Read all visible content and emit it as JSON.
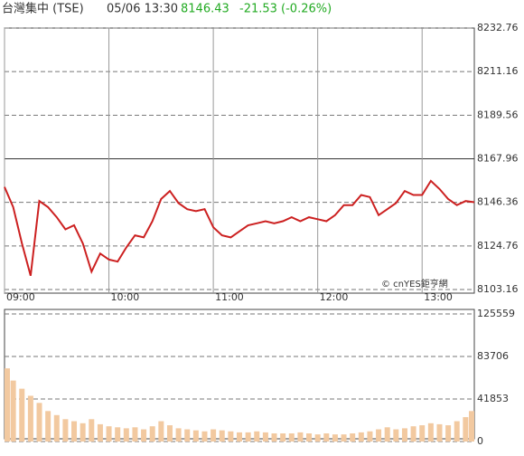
{
  "header": {
    "title": "台灣集中 (TSE)",
    "time": "05/06 13:30",
    "price": 8146.43,
    "change": "-21.53 (-0.26%)"
  },
  "chart_data": [
    {
      "type": "line",
      "reference": 8167.96,
      "x": [
        "09:00",
        "09:05",
        "09:10",
        "09:15",
        "09:20",
        "09:25",
        "09:30",
        "09:35",
        "09:40",
        "09:45",
        "09:50",
        "09:55",
        "10:00",
        "10:05",
        "10:10",
        "10:15",
        "10:20",
        "10:25",
        "10:30",
        "10:35",
        "10:40",
        "10:45",
        "10:50",
        "10:55",
        "11:00",
        "11:05",
        "11:10",
        "11:15",
        "11:20",
        "11:25",
        "11:30",
        "11:35",
        "11:40",
        "11:45",
        "11:50",
        "11:55",
        "12:00",
        "12:05",
        "12:10",
        "12:15",
        "12:20",
        "12:25",
        "12:30",
        "12:35",
        "12:40",
        "12:45",
        "12:50",
        "12:55",
        "13:00",
        "13:05",
        "13:10",
        "13:15",
        "13:20",
        "13:25",
        "13:30"
      ],
      "series": [
        {
          "name": "TSE",
          "color": "#cc2020",
          "values": [
            8154,
            8144,
            8126,
            8110,
            8147,
            8144,
            8139,
            8133,
            8135,
            8126,
            8112,
            8121,
            8118,
            8117,
            8124,
            8130,
            8129,
            8137,
            8148,
            8152,
            8146,
            8143,
            8142,
            8143,
            8134,
            8130,
            8129,
            8132,
            8135,
            8136,
            8137,
            8136,
            8137,
            8139,
            8137,
            8139,
            8138,
            8137,
            8140,
            8145,
            8145,
            8150,
            8149,
            8140,
            8143,
            8146,
            8152,
            8150,
            8150,
            8157,
            8153,
            8148,
            8145,
            8147,
            8146.43
          ]
        }
      ],
      "xlim": [
        "09:00",
        "13:30"
      ],
      "xticks": [
        "09:00",
        "10:00",
        "11:00",
        "12:00",
        "13:00"
      ],
      "ylim": [
        8103.16,
        8232.76
      ],
      "yticks": [
        8232.76,
        8211.16,
        8189.56,
        8167.96,
        8146.36,
        8124.76,
        8103.16
      ],
      "grid": true,
      "watermark": "© cnYES鉅亨網"
    },
    {
      "type": "bar",
      "x": [
        "09:00",
        "09:05",
        "09:10",
        "09:15",
        "09:20",
        "09:25",
        "09:30",
        "09:35",
        "09:40",
        "09:45",
        "09:50",
        "09:55",
        "10:00",
        "10:05",
        "10:10",
        "10:15",
        "10:20",
        "10:25",
        "10:30",
        "10:35",
        "10:40",
        "10:45",
        "10:50",
        "10:55",
        "11:00",
        "11:05",
        "11:10",
        "11:15",
        "11:20",
        "11:25",
        "11:30",
        "11:35",
        "11:40",
        "11:45",
        "11:50",
        "11:55",
        "12:00",
        "12:05",
        "12:10",
        "12:15",
        "12:20",
        "12:25",
        "12:30",
        "12:35",
        "12:40",
        "12:45",
        "12:50",
        "12:55",
        "13:00",
        "13:05",
        "13:10",
        "13:15",
        "13:20",
        "13:25",
        "13:30"
      ],
      "values": [
        72000,
        60000,
        52000,
        45000,
        38000,
        30000,
        26000,
        22000,
        20000,
        18000,
        22000,
        17000,
        15000,
        14000,
        13000,
        14000,
        12000,
        15000,
        20000,
        16000,
        13000,
        12000,
        11000,
        10000,
        12000,
        11000,
        10000,
        9000,
        9000,
        10000,
        9000,
        8000,
        8000,
        8000,
        9000,
        8000,
        7000,
        8000,
        7000,
        7000,
        8000,
        9000,
        10000,
        12000,
        14000,
        12000,
        13000,
        15000,
        16000,
        18000,
        17000,
        16000,
        20000,
        24000,
        30000
      ],
      "color": "#f2c9a0",
      "xlim": [
        "09:00",
        "13:30"
      ],
      "ylim": [
        0,
        125559
      ],
      "yticks": [
        125559,
        83706,
        41853,
        0
      ],
      "grid": true
    }
  ]
}
